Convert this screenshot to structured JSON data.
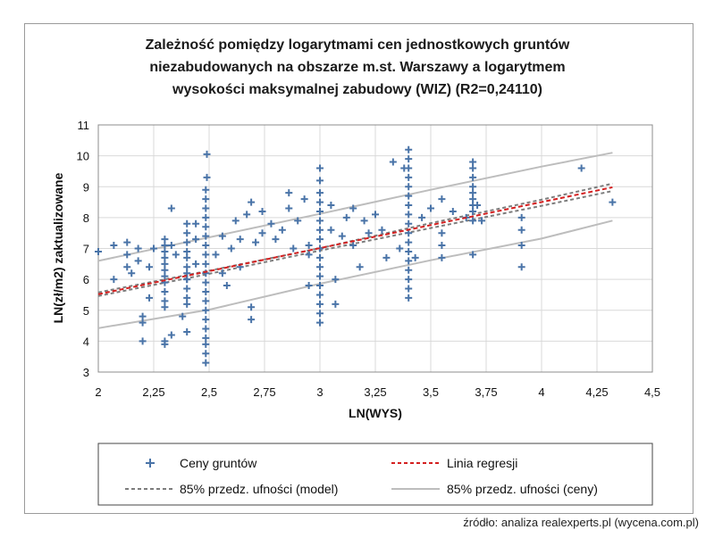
{
  "chart_data": {
    "type": "scatter",
    "title_lines": [
      "Zależność pomiędzy logarytmami cen jednostkowych gruntów",
      "niezabudowanych na obszarze m.st. Warszawy a logarytmem",
      "wysokości maksymalnej zabudowy (WIZ) (R2=0,24110)"
    ],
    "xlabel": "LN(WYS)",
    "ylabel": "LN(zł/m2)  zaktualizowane",
    "xlim": [
      2,
      4.5
    ],
    "ylim": [
      3,
      11
    ],
    "x_ticks": [
      2,
      2.25,
      2.5,
      2.75,
      3,
      3.25,
      3.5,
      3.75,
      4,
      4.25,
      4.5
    ],
    "x_tick_labels": [
      "2",
      "2,25",
      "2,5",
      "2,75",
      "3",
      "3,25",
      "3,5",
      "3,75",
      "4",
      "4,25",
      "4,5"
    ],
    "y_ticks": [
      3,
      4,
      5,
      6,
      7,
      8,
      9,
      10,
      11
    ],
    "y_tick_labels": [
      "3",
      "4",
      "5",
      "6",
      "7",
      "8",
      "9",
      "10",
      "11"
    ],
    "grid": true,
    "series": [
      {
        "name": "Ceny gruntów",
        "kind": "scatter",
        "color": "#4a74a8",
        "columns": [
          {
            "x": 2.3,
            "y": [
              5.1,
              5.3,
              5.6,
              5.9,
              6.1,
              6.3,
              6.5,
              6.7,
              6.9,
              7.1,
              7.3
            ]
          },
          {
            "x": 2.4,
            "y": [
              5.2,
              5.4,
              5.7,
              6.0,
              6.2,
              6.4,
              6.7,
              6.9,
              7.2,
              7.5,
              7.8
            ]
          },
          {
            "x": 2.485,
            "y": [
              3.3,
              3.6,
              3.9,
              4.1,
              4.4,
              4.7,
              5.0,
              5.3,
              5.6,
              5.9,
              6.2,
              6.5,
              6.8,
              7.1,
              7.4,
              7.7,
              8.0,
              8.3,
              8.6,
              8.9
            ]
          },
          {
            "x": 3.0,
            "y": [
              4.6,
              4.9,
              5.2,
              5.5,
              5.8,
              6.1,
              6.4,
              6.7,
              7.0,
              7.3,
              7.6,
              7.9,
              8.2,
              8.5,
              8.8,
              9.2
            ]
          },
          {
            "x": 3.4,
            "y": [
              5.4,
              5.7,
              6.0,
              6.3,
              6.6,
              6.9,
              7.2,
              7.5,
              7.8,
              8.1,
              8.4,
              8.7,
              9.0,
              9.3,
              9.6,
              9.9,
              10.2
            ]
          },
          {
            "x": 3.69,
            "y": [
              6.8,
              7.9,
              8.2,
              8.4,
              8.6,
              8.8,
              9.0,
              9.3,
              9.6,
              9.8
            ]
          }
        ],
        "points": [
          [
            2.0,
            6.9
          ],
          [
            2.07,
            7.1
          ],
          [
            2.07,
            6.0
          ],
          [
            2.13,
            7.2
          ],
          [
            2.13,
            6.8
          ],
          [
            2.13,
            6.4
          ],
          [
            2.15,
            6.2
          ],
          [
            2.18,
            7.0
          ],
          [
            2.18,
            6.6
          ],
          [
            2.2,
            4.8
          ],
          [
            2.2,
            4.6
          ],
          [
            2.2,
            4.0
          ],
          [
            2.23,
            5.4
          ],
          [
            2.23,
            6.4
          ],
          [
            2.25,
            7.0
          ],
          [
            2.33,
            8.3
          ],
          [
            2.33,
            7.1
          ],
          [
            2.33,
            4.2
          ],
          [
            2.3,
            4.0
          ],
          [
            2.3,
            3.9
          ],
          [
            2.35,
            6.8
          ],
          [
            2.38,
            4.8
          ],
          [
            2.4,
            4.3
          ],
          [
            2.4,
            6.0
          ],
          [
            2.44,
            6.5
          ],
          [
            2.44,
            7.3
          ],
          [
            2.44,
            7.8
          ],
          [
            2.49,
            10.05
          ],
          [
            2.49,
            9.3
          ],
          [
            2.53,
            6.8
          ],
          [
            2.56,
            7.4
          ],
          [
            2.56,
            6.2
          ],
          [
            2.58,
            5.8
          ],
          [
            2.6,
            7.0
          ],
          [
            2.62,
            7.9
          ],
          [
            2.64,
            7.3
          ],
          [
            2.64,
            6.4
          ],
          [
            2.67,
            8.1
          ],
          [
            2.69,
            8.5
          ],
          [
            2.69,
            5.1
          ],
          [
            2.69,
            4.7
          ],
          [
            2.71,
            7.2
          ],
          [
            2.74,
            8.2
          ],
          [
            2.74,
            7.5
          ],
          [
            2.78,
            7.8
          ],
          [
            2.8,
            7.3
          ],
          [
            2.83,
            7.6
          ],
          [
            2.86,
            8.8
          ],
          [
            2.86,
            8.3
          ],
          [
            2.88,
            7.0
          ],
          [
            2.9,
            7.9
          ],
          [
            2.93,
            8.6
          ],
          [
            2.95,
            7.1
          ],
          [
            2.95,
            6.8
          ],
          [
            2.95,
            5.8
          ],
          [
            3.0,
            9.6
          ],
          [
            3.05,
            8.4
          ],
          [
            3.05,
            7.6
          ],
          [
            3.07,
            6.0
          ],
          [
            3.07,
            5.2
          ],
          [
            3.1,
            7.4
          ],
          [
            3.12,
            8.0
          ],
          [
            3.15,
            8.3
          ],
          [
            3.15,
            7.1
          ],
          [
            3.18,
            6.4
          ],
          [
            3.2,
            7.9
          ],
          [
            3.22,
            7.5
          ],
          [
            3.25,
            8.1
          ],
          [
            3.28,
            7.6
          ],
          [
            3.3,
            6.7
          ],
          [
            3.33,
            9.8
          ],
          [
            3.36,
            7.0
          ],
          [
            3.38,
            9.6
          ],
          [
            3.43,
            6.7
          ],
          [
            3.46,
            8.0
          ],
          [
            3.5,
            8.3
          ],
          [
            3.55,
            8.6
          ],
          [
            3.55,
            7.5
          ],
          [
            3.55,
            7.1
          ],
          [
            3.55,
            6.7
          ],
          [
            3.6,
            8.2
          ],
          [
            3.66,
            8.0
          ],
          [
            3.71,
            8.4
          ],
          [
            3.73,
            7.9
          ],
          [
            3.91,
            8.0
          ],
          [
            3.91,
            7.6
          ],
          [
            3.91,
            7.1
          ],
          [
            3.91,
            6.4
          ],
          [
            4.18,
            9.6
          ],
          [
            4.32,
            8.5
          ]
        ]
      },
      {
        "name": "Linia regresji",
        "kind": "line",
        "color": "#d42020",
        "dash": "dashed",
        "x": [
          2.0,
          4.32
        ],
        "y": [
          5.52,
          8.98
        ]
      },
      {
        "name": "85% przedz. ufności (model)",
        "kind": "band",
        "color": "#7d7d7d",
        "dash": "dashed",
        "x": [
          2.0,
          2.5,
          3.0,
          3.5,
          4.0,
          4.32
        ],
        "upper": [
          5.58,
          6.28,
          7.01,
          7.82,
          8.58,
          9.1
        ],
        "lower": [
          5.46,
          6.18,
          6.93,
          7.66,
          8.38,
          8.86
        ]
      },
      {
        "name": "85% przedz. ufności (ceny)",
        "kind": "band",
        "color": "#bdbdbd",
        "dash": "solid",
        "x": [
          2.0,
          2.5,
          3.0,
          3.5,
          4.0,
          4.32
        ],
        "upper": [
          6.6,
          7.36,
          8.12,
          8.9,
          9.65,
          10.1
        ],
        "lower": [
          4.42,
          5.02,
          5.86,
          6.62,
          7.32,
          7.9
        ]
      }
    ],
    "legend": [
      {
        "label": "Ceny gruntów",
        "style": "marker"
      },
      {
        "label": "Linia regresji",
        "style": "red-dash"
      },
      {
        "label": "85% przedz. ufności (model)",
        "style": "grey-dash"
      },
      {
        "label": "85% przedz. ufności (ceny)",
        "style": "grey-solid"
      }
    ],
    "legend_position": "bottom"
  },
  "source_text": "źródło: analiza realexperts.pl (wycena.com.pl)"
}
